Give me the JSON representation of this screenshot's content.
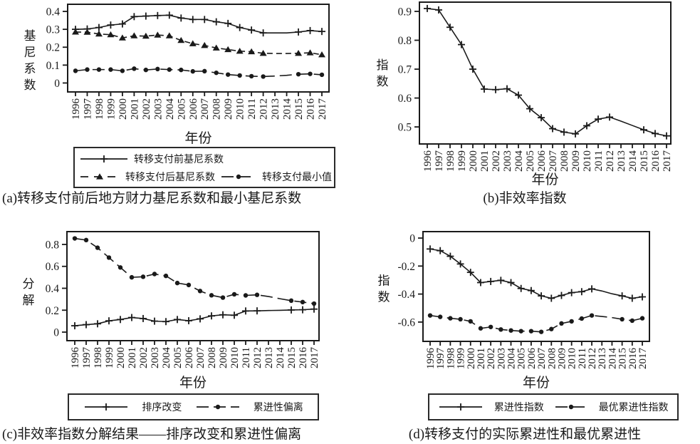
{
  "colors": {
    "line": "#1a1a1a",
    "text": "#1a1a1a",
    "background": "#ffffff"
  },
  "chart_data": [
    {
      "id": "a",
      "type": "line",
      "caption": "(a)转移支付前后地方财力基尼系数和最小基尼系数",
      "xlabel": "年份",
      "ylabel": "基尼系数",
      "x": [
        1996,
        1997,
        1998,
        1999,
        2000,
        2001,
        2002,
        2003,
        2004,
        2005,
        2006,
        2007,
        2008,
        2009,
        2010,
        2011,
        2012,
        2013,
        2014,
        2015,
        2016,
        2017
      ],
      "yticks": [
        0,
        0.1,
        0.2,
        0.3,
        0.4
      ],
      "ylim": [
        -0.05,
        0.44
      ],
      "grid": false,
      "legend_position": "below",
      "marker_gap_years": [
        2013,
        2014
      ],
      "series": [
        {
          "name": "转移支付前基尼系数",
          "marker": "plus",
          "line": "solid",
          "values": [
            0.3,
            0.302,
            0.31,
            0.324,
            0.33,
            0.371,
            0.374,
            0.377,
            0.379,
            0.363,
            0.355,
            0.355,
            0.342,
            0.333,
            0.31,
            0.296,
            0.28,
            0.28,
            0.28,
            0.285,
            0.293,
            0.288
          ]
        },
        {
          "name": "转移支付后基尼系数",
          "marker": "triangle",
          "line": "dashed",
          "values": [
            0.285,
            0.284,
            0.274,
            0.27,
            0.252,
            0.264,
            0.262,
            0.268,
            0.264,
            0.238,
            0.22,
            0.21,
            0.196,
            0.187,
            0.178,
            0.175,
            0.166,
            0.165,
            0.165,
            0.166,
            0.169,
            0.158
          ]
        },
        {
          "name": "转移支付最小值",
          "marker": "circle",
          "line": "long-dash",
          "values": [
            0.068,
            0.075,
            0.075,
            0.075,
            0.068,
            0.08,
            0.073,
            0.078,
            0.075,
            0.073,
            0.065,
            0.066,
            0.057,
            0.047,
            0.042,
            0.038,
            0.036,
            0.039,
            0.043,
            0.049,
            0.051,
            0.046
          ]
        }
      ]
    },
    {
      "id": "b",
      "type": "line",
      "caption": "(b)非效率指数",
      "xlabel": "年份",
      "ylabel": "指数",
      "x": [
        1996,
        1997,
        1998,
        1999,
        2000,
        2001,
        2002,
        2003,
        2004,
        2005,
        2006,
        2007,
        2008,
        2009,
        2010,
        2011,
        2012,
        2013,
        2014,
        2015,
        2016,
        2017
      ],
      "yticks": [
        0.5,
        0.6,
        0.7,
        0.8,
        0.9
      ],
      "ylim": [
        0.441,
        0.932
      ],
      "grid": false,
      "legend_position": "none",
      "marker_gap_years": [
        2013,
        2014
      ],
      "series": [
        {
          "name": "非效率指数",
          "marker": "plus",
          "line": "solid",
          "values": [
            0.91,
            0.905,
            0.845,
            0.785,
            0.7,
            0.631,
            0.629,
            0.632,
            0.61,
            0.563,
            0.532,
            0.494,
            0.482,
            0.476,
            0.504,
            0.527,
            0.534,
            0.52,
            0.505,
            0.49,
            0.477,
            0.469
          ]
        }
      ]
    },
    {
      "id": "c",
      "type": "line",
      "caption": "(c)非效率指数分解结果——排序改变和累进性偏离",
      "xlabel": "年份",
      "ylabel": "分解",
      "x": [
        1996,
        1997,
        1998,
        1999,
        2000,
        2001,
        2002,
        2003,
        2004,
        2005,
        2006,
        2007,
        2008,
        2009,
        2010,
        2011,
        2012,
        2013,
        2014,
        2015,
        2016,
        2017
      ],
      "yticks": [
        0,
        0.2,
        0.4,
        0.6,
        0.8
      ],
      "ylim": [
        -0.078,
        0.917
      ],
      "grid": false,
      "legend_position": "below",
      "marker_gap_years": [
        2013,
        2014
      ],
      "series": [
        {
          "name": "排序改变",
          "marker": "plus",
          "line": "solid",
          "values": [
            0.058,
            0.068,
            0.076,
            0.103,
            0.115,
            0.133,
            0.124,
            0.1,
            0.096,
            0.115,
            0.104,
            0.121,
            0.148,
            0.158,
            0.154,
            0.193,
            0.194,
            0.197,
            0.199,
            0.202,
            0.204,
            0.21
          ]
        },
        {
          "name": "累进性偏离",
          "marker": "circle",
          "line": "long-dash",
          "values": [
            0.855,
            0.84,
            0.77,
            0.68,
            0.59,
            0.5,
            0.505,
            0.53,
            0.513,
            0.448,
            0.43,
            0.375,
            0.336,
            0.315,
            0.345,
            0.335,
            0.34,
            0.325,
            0.305,
            0.287,
            0.274,
            0.26
          ]
        }
      ]
    },
    {
      "id": "d",
      "type": "line",
      "caption": "(d)转移支付的实际累进性和最优累进性",
      "xlabel": "年份",
      "ylabel": "指数",
      "x": [
        1996,
        1997,
        1998,
        1999,
        2000,
        2001,
        2002,
        2003,
        2004,
        2005,
        2006,
        2007,
        2008,
        2009,
        2010,
        2011,
        2012,
        2013,
        2014,
        2015,
        2016,
        2017
      ],
      "yticks": [
        0,
        -0.2,
        -0.4,
        -0.6
      ],
      "ylim": [
        -0.738,
        0.046
      ],
      "grid": false,
      "legend_position": "below",
      "marker_gap_years": [
        2013,
        2014
      ],
      "series": [
        {
          "name": "累进性指数",
          "marker": "plus",
          "line": "solid",
          "values": [
            -0.078,
            -0.09,
            -0.13,
            -0.185,
            -0.245,
            -0.318,
            -0.31,
            -0.302,
            -0.318,
            -0.36,
            -0.375,
            -0.413,
            -0.43,
            -0.41,
            -0.39,
            -0.383,
            -0.363,
            -0.378,
            -0.398,
            -0.413,
            -0.43,
            -0.42
          ]
        },
        {
          "name": "最优累进性指数",
          "marker": "circle",
          "line": "long-dash",
          "values": [
            -0.553,
            -0.563,
            -0.573,
            -0.58,
            -0.595,
            -0.645,
            -0.635,
            -0.653,
            -0.66,
            -0.665,
            -0.665,
            -0.67,
            -0.65,
            -0.61,
            -0.595,
            -0.575,
            -0.553,
            -0.56,
            -0.568,
            -0.58,
            -0.59,
            -0.573
          ]
        }
      ]
    }
  ]
}
